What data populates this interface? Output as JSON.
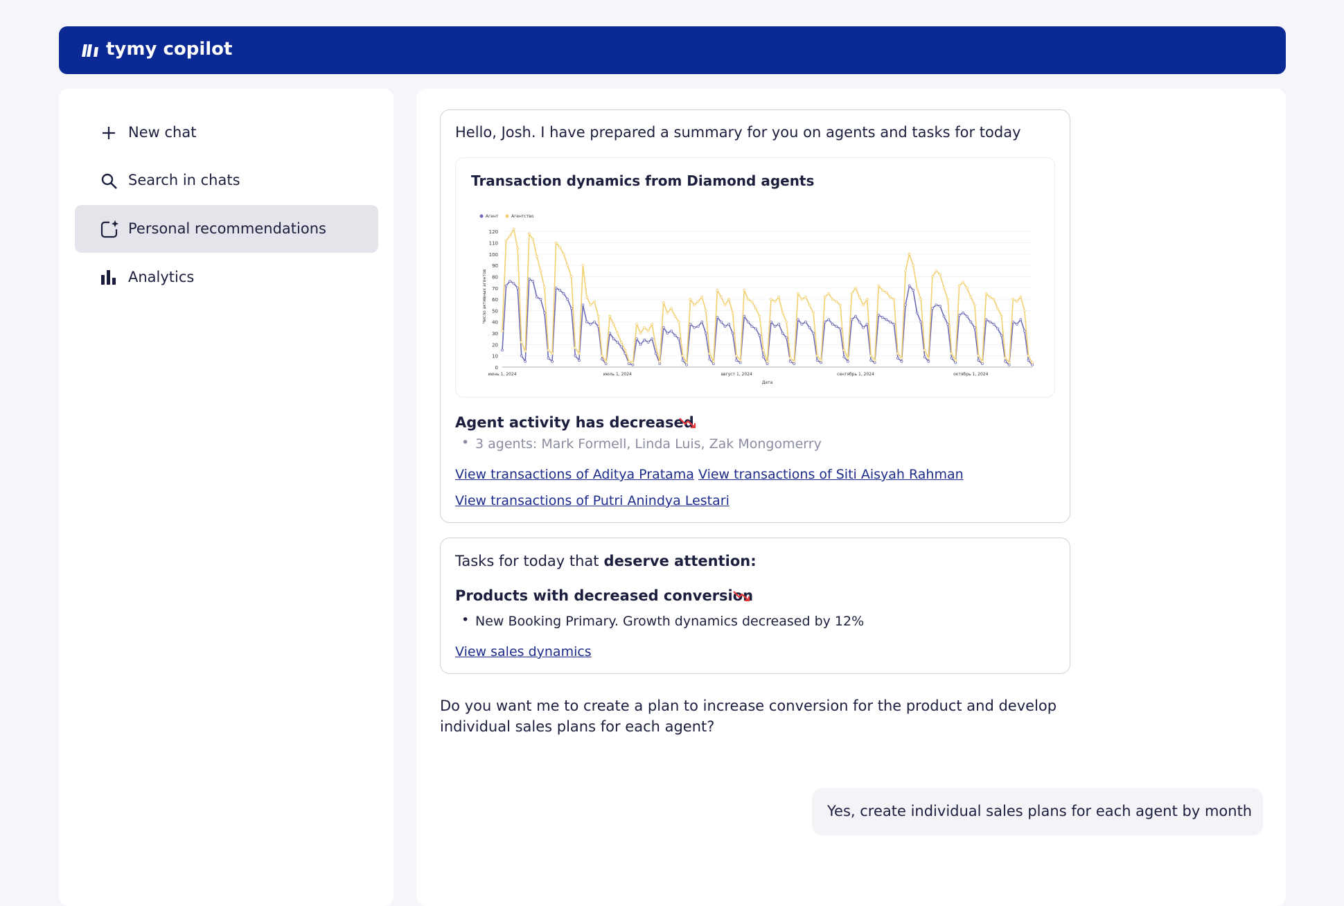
{
  "header": {
    "logo": "tymy copilot"
  },
  "sidebar": {
    "items": [
      "New chat",
      "Search in chats",
      "Personal recommendations",
      "Analytics"
    ]
  },
  "chat": {
    "greeting": "Hello, Josh. I have prepared a summary for you on agents and tasks for today",
    "activity": {
      "heading": "Agent activity has decreased",
      "bullet": "3 agents: Mark Formell, Linda Luis, Zak Mongomerry",
      "links": [
        "View transactions of Aditya Pratama",
        "View transactions of Siti Aisyah Rahman",
        "View transactions of Putri Anindya Lestari"
      ]
    },
    "tasks": {
      "intro": "Tasks for today that",
      "intro_bold": "deserve attention:",
      "heading": "Products with decreased conversion",
      "bullet": "New Booking Primary. Growth dynamics decreased by 12%",
      "link": "View sales dynamics"
    },
    "question": "Do you want me to create a plan to increase conversion for the product and develop individual sales plans for each agent?",
    "reply": "Yes, create individual sales plans for each agent by month"
  },
  "chart_data": {
    "type": "line",
    "title": "Transaction dynamics from Diamond agents",
    "x_label": "Дата",
    "y_label": "Число активных агентов",
    "legend": "upper left",
    "grid": true,
    "ylim": [
      0,
      125
    ],
    "yticks": [
      0,
      10,
      20,
      30,
      40,
      50,
      60,
      70,
      80,
      90,
      100,
      110,
      120
    ],
    "categories": [
      "июнь 1, 2024",
      null,
      null,
      null,
      null,
      null,
      null,
      null,
      null,
      null,
      null,
      null,
      null,
      null,
      null,
      null,
      null,
      null,
      null,
      null,
      null,
      null,
      null,
      null,
      null,
      null,
      null,
      null,
      null,
      null,
      "июль 1, 2024",
      null,
      null,
      null,
      null,
      null,
      null,
      null,
      null,
      null,
      null,
      null,
      null,
      null,
      null,
      null,
      null,
      null,
      null,
      null,
      null,
      null,
      null,
      null,
      null,
      null,
      null,
      null,
      null,
      null,
      null,
      "август 1, 2024",
      null,
      null,
      null,
      null,
      null,
      null,
      null,
      null,
      null,
      null,
      null,
      null,
      null,
      null,
      null,
      null,
      null,
      null,
      null,
      null,
      null,
      null,
      null,
      null,
      null,
      null,
      null,
      null,
      null,
      null,
      "сентябрь 1, 2024",
      null,
      null,
      null,
      null,
      null,
      null,
      null,
      null,
      null,
      null,
      null,
      null,
      null,
      null,
      null,
      null,
      null,
      null,
      null,
      null,
      null,
      null,
      null,
      null,
      null,
      null,
      null,
      null,
      null,
      "октябрь 1, 2024",
      null,
      null,
      null,
      null,
      null,
      null,
      null,
      null,
      null,
      null,
      null,
      null,
      null,
      null,
      null,
      null
    ],
    "series": [
      {
        "name": "Агент",
        "color": "#6b6bb8",
        "values": [
          15,
          72,
          76,
          74,
          70,
          10,
          5,
          78,
          76,
          62,
          60,
          48,
          8,
          5,
          70,
          68,
          65,
          60,
          52,
          10,
          6,
          55,
          40,
          38,
          40,
          36,
          7,
          3,
          30,
          25,
          22,
          18,
          12,
          3,
          2,
          25,
          20,
          24,
          22,
          25,
          12,
          3,
          35,
          30,
          32,
          28,
          25,
          6,
          2,
          38,
          35,
          36,
          40,
          30,
          7,
          3,
          44,
          40,
          36,
          38,
          30,
          6,
          4,
          45,
          40,
          36,
          34,
          28,
          9,
          3,
          40,
          36,
          38,
          30,
          26,
          5,
          3,
          42,
          38,
          40,
          35,
          30,
          6,
          4,
          40,
          42,
          38,
          36,
          34,
          9,
          5,
          42,
          45,
          40,
          35,
          38,
          6,
          4,
          46,
          44,
          42,
          40,
          38,
          8,
          5,
          55,
          72,
          68,
          48,
          40,
          9,
          5,
          52,
          55,
          54,
          45,
          38,
          8,
          4,
          46,
          48,
          45,
          40,
          35,
          6,
          3,
          42,
          40,
          38,
          34,
          28,
          5,
          2,
          40,
          38,
          42,
          32,
          6,
          2
        ]
      },
      {
        "name": "Агентство",
        "color": "#f2cf6f",
        "values": [
          32,
          112,
          116,
          122,
          105,
          22,
          14,
          118,
          113,
          98,
          85,
          70,
          15,
          12,
          110,
          106,
          100,
          90,
          80,
          17,
          12,
          90,
          62,
          55,
          58,
          45,
          10,
          5,
          45,
          38,
          30,
          22,
          15,
          5,
          4,
          38,
          30,
          35,
          32,
          38,
          18,
          5,
          57,
          48,
          52,
          45,
          40,
          10,
          4,
          60,
          55,
          58,
          62,
          50,
          12,
          5,
          68,
          62,
          55,
          60,
          48,
          10,
          6,
          68,
          60,
          58,
          52,
          45,
          15,
          5,
          60,
          58,
          62,
          48,
          40,
          8,
          5,
          65,
          60,
          62,
          55,
          48,
          10,
          6,
          62,
          65,
          60,
          58,
          55,
          15,
          8,
          65,
          70,
          62,
          55,
          60,
          10,
          6,
          72,
          68,
          66,
          62,
          60,
          12,
          8,
          85,
          100,
          90,
          70,
          60,
          15,
          8,
          80,
          85,
          82,
          70,
          60,
          12,
          6,
          72,
          75,
          70,
          62,
          55,
          10,
          5,
          65,
          62,
          60,
          52,
          45,
          8,
          4,
          60,
          58,
          62,
          50,
          10,
          4
        ]
      }
    ]
  }
}
